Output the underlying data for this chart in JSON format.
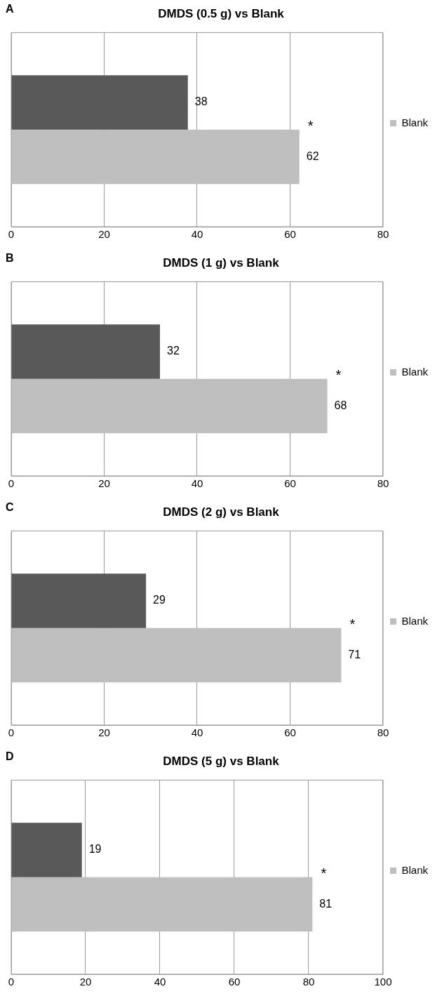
{
  "chart_data": [
    {
      "type": "bar",
      "orientation": "horizontal",
      "title": "DMDS (0.5 g) vs Blank",
      "categories": [
        null
      ],
      "series": [
        {
          "color": "#595959",
          "values": [
            38
          ]
        },
        {
          "name": "Blank",
          "color": "#bfbfbf",
          "values": [
            62
          ]
        }
      ],
      "xlim": [
        0,
        80
      ],
      "xticks": [
        0,
        20,
        40,
        60,
        80
      ],
      "grid": "x",
      "legend": "right",
      "data_labels": true,
      "annotations": [
        "A",
        "*"
      ]
    },
    {
      "type": "bar",
      "orientation": "horizontal",
      "title": "DMDS (1 g) vs Blank",
      "categories": [
        null
      ],
      "series": [
        {
          "color": "#595959",
          "values": [
            32
          ]
        },
        {
          "name": "Blank",
          "color": "#bfbfbf",
          "values": [
            68
          ]
        }
      ],
      "xlim": [
        0,
        80
      ],
      "xticks": [
        0,
        20,
        40,
        60,
        80
      ],
      "grid": "x",
      "legend": "right",
      "data_labels": true,
      "annotations": [
        "B",
        "*"
      ]
    },
    {
      "type": "bar",
      "orientation": "horizontal",
      "title": "DMDS (2 g) vs Blank",
      "categories": [
        null
      ],
      "series": [
        {
          "color": "#595959",
          "values": [
            29
          ]
        },
        {
          "name": "Blank",
          "color": "#bfbfbf",
          "values": [
            71
          ]
        }
      ],
      "xlim": [
        0,
        80
      ],
      "xticks": [
        0,
        20,
        40,
        60,
        80
      ],
      "grid": "x",
      "legend": "right",
      "data_labels": true,
      "annotations": [
        "C",
        "*"
      ]
    },
    {
      "type": "bar",
      "orientation": "horizontal",
      "title": "DMDS (5 g) vs Blank",
      "categories": [
        null
      ],
      "series": [
        {
          "color": "#595959",
          "values": [
            19
          ]
        },
        {
          "name": "Blank",
          "color": "#bfbfbf",
          "values": [
            81
          ]
        }
      ],
      "xlim": [
        0,
        100
      ],
      "xticks": [
        0,
        20,
        40,
        60,
        80,
        100
      ],
      "grid": "x",
      "legend": "right",
      "data_labels": true,
      "annotations": [
        "D",
        "*"
      ]
    }
  ]
}
